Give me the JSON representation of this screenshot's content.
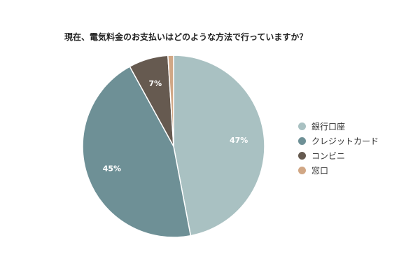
{
  "chart_data": {
    "type": "pie",
    "title": "現在、電気料金のお支払いはどのような方法で行っていますか？",
    "categories": [
      "銀行口座",
      "クレジットカード",
      "コンビニ",
      "窓口"
    ],
    "values": [
      47,
      45,
      7,
      1
    ],
    "value_labels": [
      "47%",
      "45%",
      "7%",
      ""
    ],
    "colors": [
      "#a9c1c2",
      "#6e9096",
      "#665a50",
      "#d1a785"
    ],
    "legend_placement": "right",
    "start_angle_deg": 0,
    "direction": "clockwise"
  }
}
